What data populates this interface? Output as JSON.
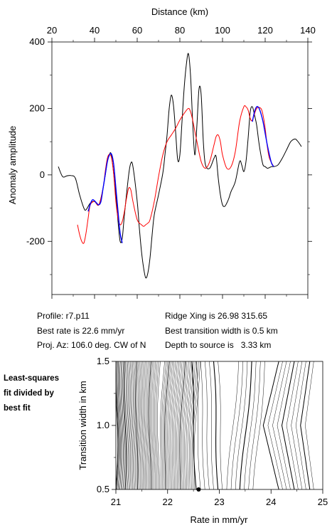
{
  "top_chart": {
    "xlabel": "Distance (km)",
    "ylabel": "Anomaly amplitude"
  },
  "info": {
    "profile": "Profile: r7.p11",
    "best_rate": "Best rate is 22.6 mm/yr",
    "proj_az": "Proj. Az: 106.0 deg. CW of N",
    "ridge_xing": "Ridge Xing is 26.98 315.65",
    "transition": "Best transition width is 0.5 km",
    "depth": "Depth to source is   3.33 km"
  },
  "side_note": [
    "Least-squares",
    "fit divided by",
    "best fit"
  ],
  "bottom_chart": {
    "xlabel": "Rate in mm/yr",
    "ylabel": "Transition width in km"
  },
  "chart_data": [
    {
      "type": "line",
      "title": "",
      "xlabel": "Distance (km)",
      "ylabel": "Anomaly amplitude",
      "xlim": [
        20,
        140
      ],
      "ylim": [
        -360,
        400
      ],
      "x_ticks": [
        20,
        40,
        60,
        80,
        100,
        120,
        140
      ],
      "y_ticks": [
        -200,
        0,
        200,
        400
      ],
      "x_tick_labels": [
        "20",
        "40",
        "60",
        "80",
        "100",
        "120",
        "140"
      ],
      "y_tick_labels": [
        "-200",
        "0",
        "200",
        "400"
      ],
      "x_axis_position": "top",
      "grid": false,
      "series": [
        {
          "color": "#000000",
          "x": [
            23,
            25,
            27,
            29,
            31,
            33,
            35,
            36,
            38,
            40,
            42,
            44,
            46,
            47,
            48,
            50,
            51,
            52,
            53,
            54,
            56,
            57,
            58,
            60,
            61,
            62,
            63,
            64,
            65,
            66,
            67,
            68,
            70,
            72,
            73,
            74,
            75,
            76,
            77,
            78,
            79,
            80,
            81,
            82,
            83,
            84,
            85,
            86,
            87,
            88,
            89,
            90,
            91,
            92,
            94,
            96,
            97,
            98,
            99,
            100,
            101,
            102,
            103,
            104,
            106,
            108,
            109,
            110,
            111,
            112,
            113,
            114,
            115,
            116,
            117,
            118,
            119,
            120,
            121,
            122,
            123,
            124,
            126,
            128,
            130,
            132,
            134,
            135,
            136,
            137
          ],
          "y": [
            25,
            -5,
            -3,
            -2,
            -10,
            -60,
            -100,
            -105,
            -85,
            -80,
            -90,
            -40,
            40,
            62,
            55,
            -60,
            -140,
            -200,
            -190,
            -120,
            0,
            35,
            25,
            -80,
            -160,
            -230,
            -280,
            -310,
            -295,
            -250,
            -180,
            -120,
            -60,
            5,
            60,
            120,
            200,
            240,
            210,
            130,
            45,
            60,
            160,
            260,
            330,
            365,
            300,
            160,
            60,
            150,
            260,
            240,
            100,
            30,
            20,
            50,
            55,
            -10,
            -60,
            -90,
            -95,
            -85,
            -70,
            -50,
            -20,
            40,
            30,
            10,
            40,
            110,
            190,
            205,
            180,
            150,
            100,
            60,
            30,
            25,
            20,
            22,
            25,
            25,
            30,
            50,
            75,
            100,
            108,
            103,
            95,
            85
          ]
        },
        {
          "color": "#ff0000",
          "x": [
            32,
            33,
            34,
            35,
            36,
            37,
            38,
            40,
            42,
            44,
            45,
            46,
            47,
            48,
            49,
            50,
            51,
            52,
            53,
            54,
            55,
            56,
            57,
            58,
            60,
            62,
            63,
            64,
            65,
            66,
            68,
            70,
            72,
            74,
            76,
            78,
            80,
            82,
            84,
            85,
            86,
            88,
            90,
            92,
            94,
            96,
            97,
            98,
            99,
            100,
            102,
            104,
            106,
            108,
            110,
            111,
            112,
            113,
            114,
            116,
            118,
            119,
            120,
            121,
            122,
            124
          ],
          "y": [
            -150,
            -180,
            -200,
            -205,
            -175,
            -130,
            -90,
            -80,
            -90,
            -40,
            10,
            50,
            62,
            50,
            0,
            -80,
            -130,
            -150,
            -140,
            -110,
            -70,
            -40,
            -45,
            -80,
            -135,
            -150,
            -155,
            -150,
            -145,
            -135,
            -80,
            -5,
            60,
            100,
            120,
            140,
            165,
            185,
            200,
            190,
            165,
            100,
            40,
            20,
            40,
            90,
            115,
            120,
            100,
            60,
            20,
            25,
            70,
            160,
            205,
            205,
            195,
            170,
            165,
            200,
            200,
            180,
            140,
            85,
            50,
            25
          ]
        },
        {
          "color": "#0000ff",
          "x": [
            37,
            38,
            39,
            40,
            41,
            42,
            43,
            44,
            45,
            46,
            47,
            48,
            49,
            50,
            51,
            52,
            53
          ],
          "y": [
            -110,
            -88,
            -75,
            -78,
            -85,
            -90,
            -80,
            -40,
            0,
            40,
            60,
            62,
            30,
            -40,
            -110,
            -175,
            -205
          ]
        },
        {
          "color": "#0000ff",
          "x": [
            114,
            115,
            116,
            117,
            118,
            119,
            120,
            121,
            122,
            123,
            124
          ],
          "y": [
            160,
            190,
            205,
            202,
            185,
            160,
            125,
            90,
            60,
            35,
            25
          ]
        }
      ]
    },
    {
      "type": "contour",
      "title": "",
      "xlabel": "Rate in mm/yr",
      "ylabel": "Transition width in km",
      "xlim": [
        21,
        25
      ],
      "ylim": [
        0.5,
        1.5
      ],
      "x_ticks": [
        21,
        22,
        23,
        24,
        25
      ],
      "y_ticks": [
        0.5,
        1.0,
        1.5
      ],
      "x_tick_labels": [
        "21",
        "22",
        "23",
        "24",
        "25"
      ],
      "y_tick_labels": [
        "0.5",
        "1.0",
        "1.5"
      ],
      "best_fit": {
        "rate": 22.6,
        "width": 0.5
      },
      "grid": false
    }
  ]
}
